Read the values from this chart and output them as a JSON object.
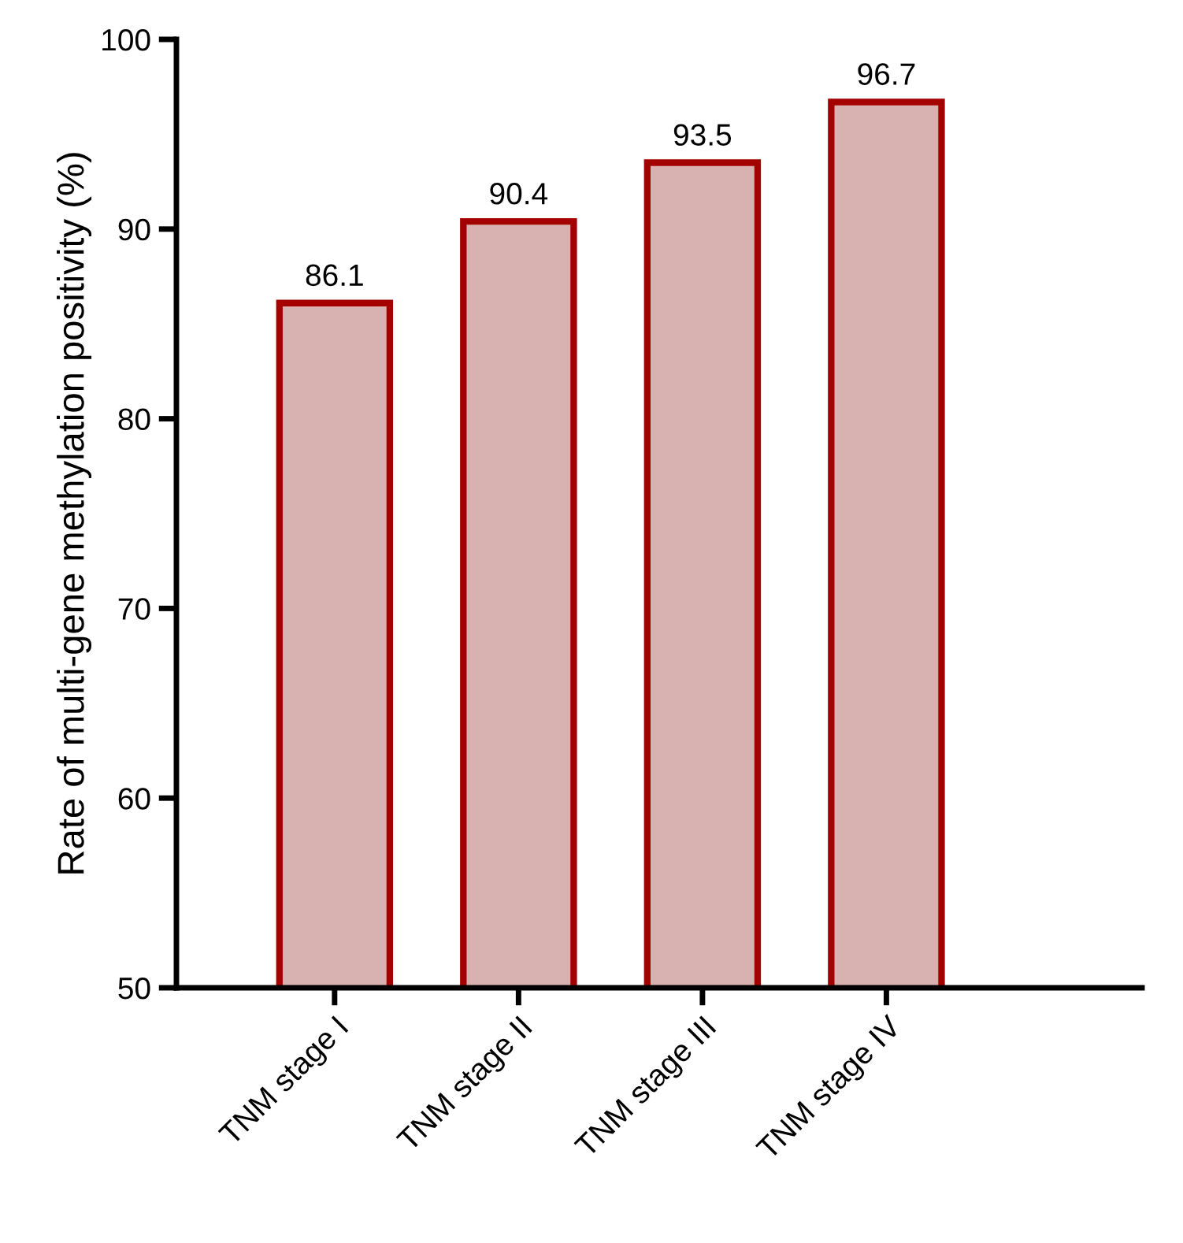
{
  "chart_data": {
    "type": "bar",
    "ylabel": "Rate of multi-gene methylation positivity (%)",
    "categories": [
      "TNM stage I",
      "TNM stage II",
      "TNM stage III",
      "TNM stage IV"
    ],
    "values": [
      86.1,
      90.4,
      93.5,
      96.7
    ],
    "color": "#d8b1b1",
    "ylim": [
      50,
      100
    ],
    "yticks": [
      50,
      60,
      70,
      80,
      90,
      100
    ],
    "grid": false,
    "data_labels": true
  }
}
